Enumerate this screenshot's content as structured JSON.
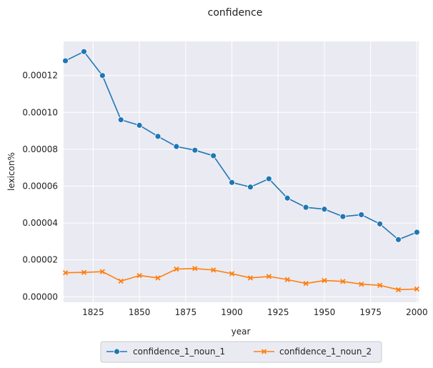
{
  "chart_data": {
    "type": "line",
    "title": "confidence",
    "xlabel": "year",
    "ylabel": "lexicon%",
    "xlim": [
      1809,
      2001
    ],
    "ylim": [
      -3e-06,
      0.0001385
    ],
    "xticks": [
      1825,
      1850,
      1875,
      1900,
      1925,
      1950,
      1975,
      2000
    ],
    "xtick_labels": [
      "1825",
      "1850",
      "1875",
      "1900",
      "1925",
      "1950",
      "1975",
      "2000"
    ],
    "yticks": [
      0,
      2e-05,
      4e-05,
      6e-05,
      8e-05,
      0.0001,
      0.00012
    ],
    "ytick_labels": [
      "0.00000",
      "0.00002",
      "0.00004",
      "0.00006",
      "0.00008",
      "0.00010",
      "0.00012"
    ],
    "grid": true,
    "legend_position": "bottom-center",
    "x": [
      1810,
      1820,
      1830,
      1840,
      1850,
      1860,
      1870,
      1880,
      1890,
      1900,
      1910,
      1920,
      1930,
      1940,
      1950,
      1960,
      1970,
      1980,
      1990,
      2000
    ],
    "series": [
      {
        "name": "confidence_1_noun_1",
        "color": "#1f77b4",
        "marker": "circle",
        "values": [
          0.000128,
          0.000133,
          0.00012,
          9.6e-05,
          9.3e-05,
          8.7e-05,
          8.15e-05,
          7.95e-05,
          7.65e-05,
          6.2e-05,
          5.95e-05,
          6.4e-05,
          5.35e-05,
          4.85e-05,
          4.75e-05,
          4.35e-05,
          4.45e-05,
          3.95e-05,
          3.1e-05,
          3.5e-05
        ]
      },
      {
        "name": "confidence_1_noun_2",
        "color": "#ff7f0e",
        "marker": "x",
        "values": [
          1.3e-05,
          1.32e-05,
          1.36e-05,
          8.5e-06,
          1.15e-05,
          1.02e-05,
          1.5e-05,
          1.53e-05,
          1.45e-05,
          1.25e-05,
          1.02e-05,
          1.1e-05,
          9.3e-06,
          7.2e-06,
          8.8e-06,
          8.3e-06,
          6.8e-06,
          6.2e-06,
          3.8e-06,
          4.2e-06
        ]
      }
    ]
  }
}
